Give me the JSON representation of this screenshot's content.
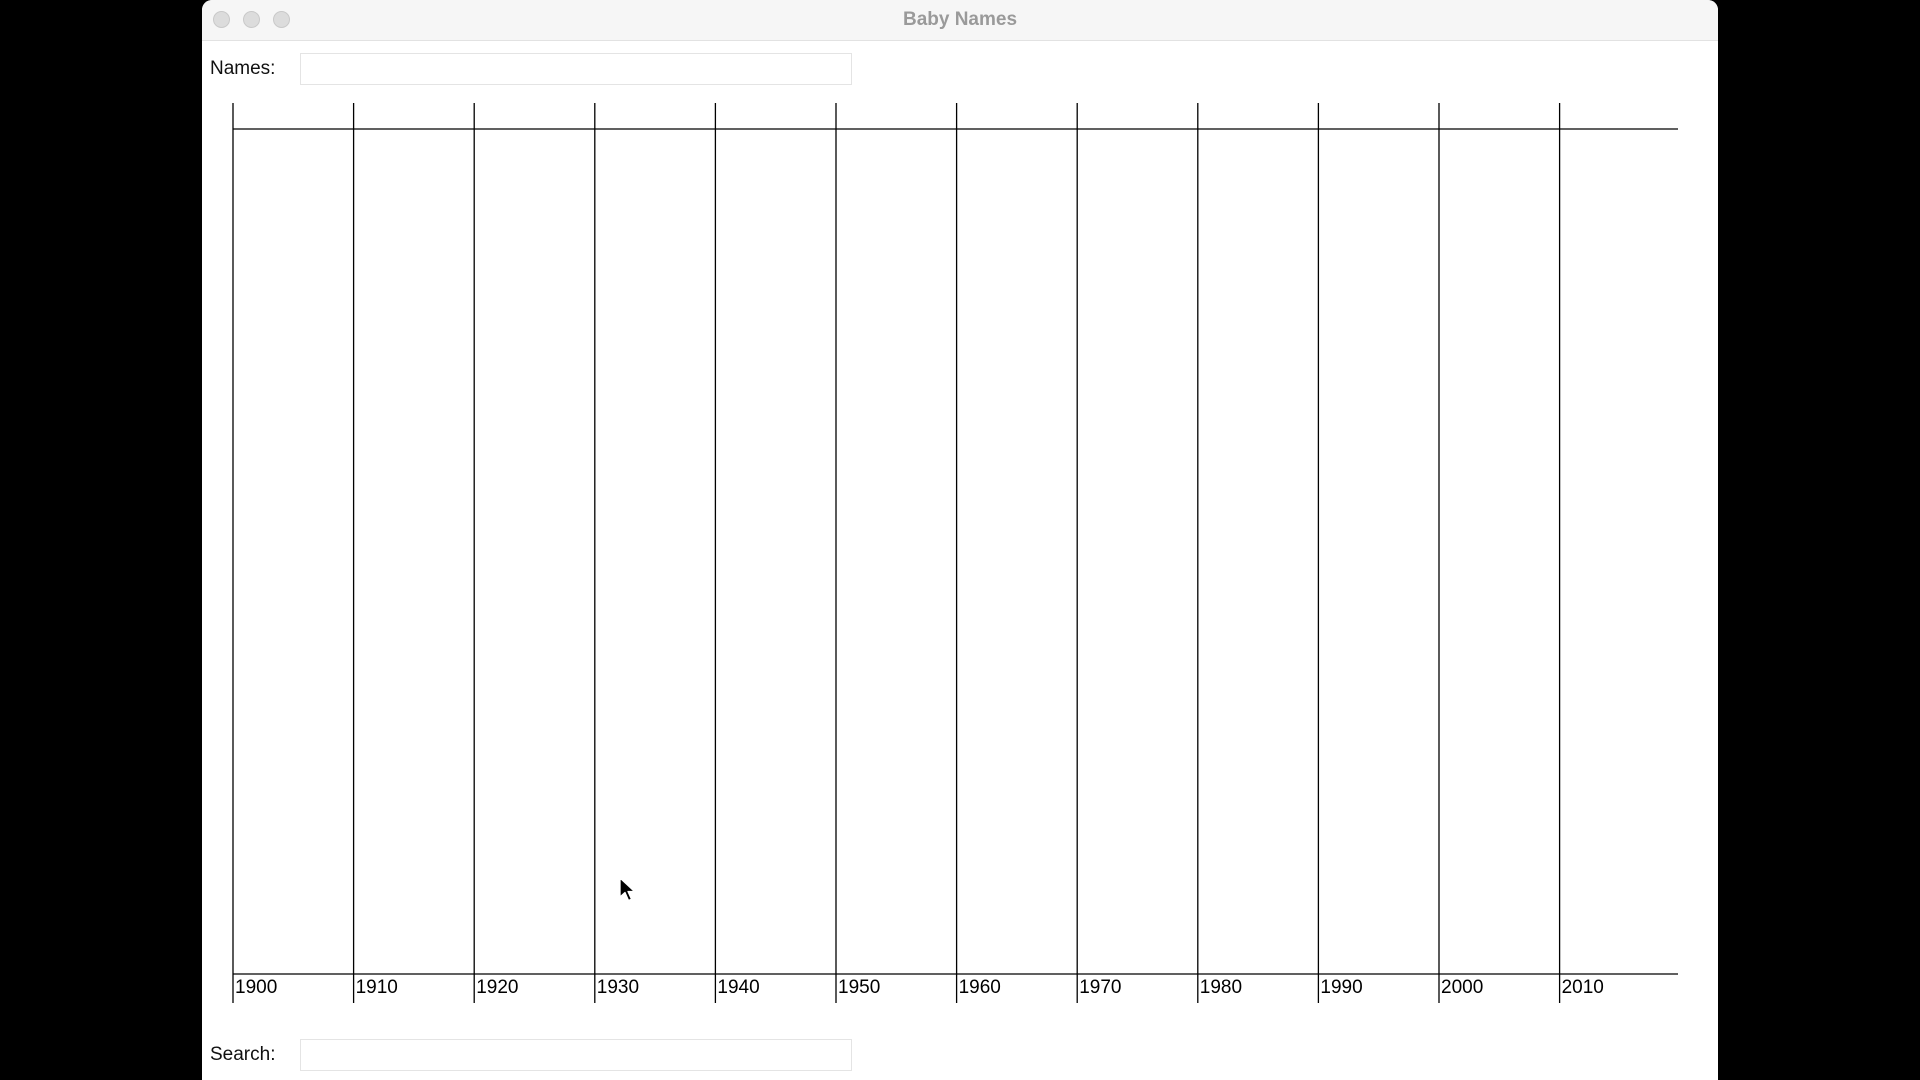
{
  "window": {
    "title": "Baby Names",
    "controls": [
      "close",
      "minimize",
      "zoom"
    ]
  },
  "names_field": {
    "label": "Names:",
    "value": ""
  },
  "search_field": {
    "label": "Search:",
    "value": ""
  },
  "chart_data": {
    "type": "line",
    "x": [
      1900,
      1910,
      1920,
      1930,
      1940,
      1950,
      1960,
      1970,
      1980,
      1990,
      2000,
      2010
    ],
    "series": [],
    "grid": true,
    "line_color": "#000000"
  }
}
